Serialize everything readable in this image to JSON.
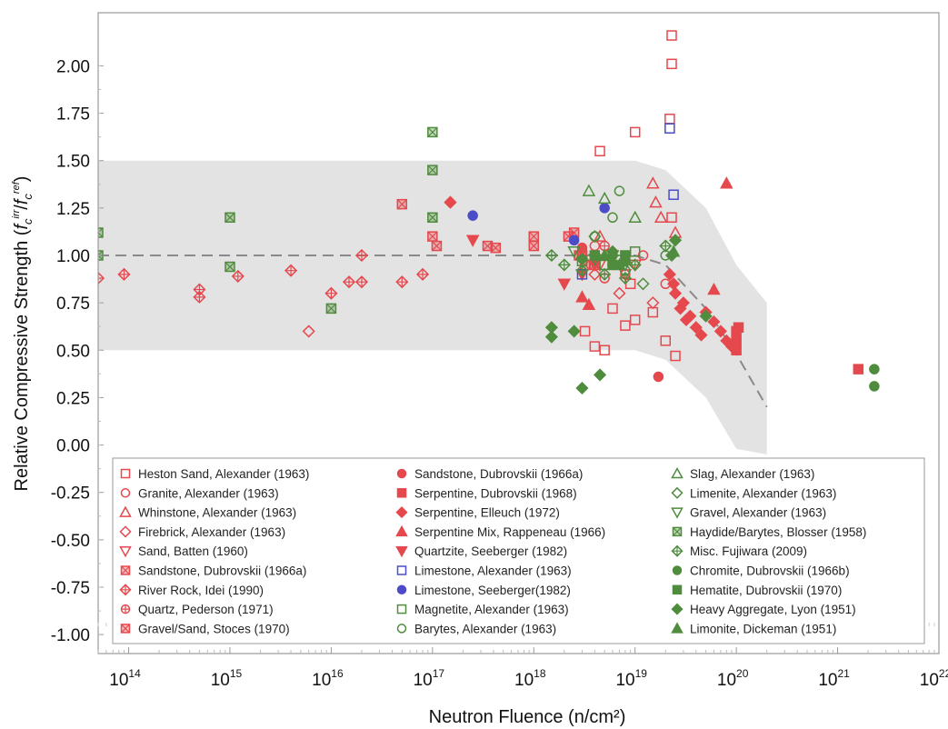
{
  "chart_data": {
    "type": "scatter",
    "xlabel": "Neutron Fluence (n/cm²)",
    "ylabel_prefix": "Relative Compressive Strength (",
    "ylabel_suffix": ")",
    "ylabel_math": {
      "f1": "f",
      "sub1": "c",
      "sup1": "irr",
      "slash": "/",
      "f2": "f",
      "sub2": "c",
      "sup2": "ref"
    },
    "x_scale": "log",
    "xlim": [
      50000000000000.0,
      1e+22
    ],
    "ylim": [
      -1.1,
      2.28
    ],
    "x_ticks": [
      {
        "base": "10",
        "exp": "14",
        "value": 100000000000000.0
      },
      {
        "base": "10",
        "exp": "15",
        "value": 1000000000000000.0
      },
      {
        "base": "10",
        "exp": "16",
        "value": 1e+16
      },
      {
        "base": "10",
        "exp": "17",
        "value": 1e+17
      },
      {
        "base": "10",
        "exp": "18",
        "value": 1e+18
      },
      {
        "base": "10",
        "exp": "19",
        "value": 1e+19
      },
      {
        "base": "10",
        "exp": "20",
        "value": 1e+20
      },
      {
        "base": "10",
        "exp": "21",
        "value": 1e+21
      },
      {
        "base": "10",
        "exp": "22",
        "value": 1e+22
      }
    ],
    "y_ticks": [
      {
        "label": "2.00",
        "value": 2.0
      },
      {
        "label": "1.75",
        "value": 1.75
      },
      {
        "label": "1.50",
        "value": 1.5
      },
      {
        "label": "1.25",
        "value": 1.25
      },
      {
        "label": "1.00",
        "value": 1.0
      },
      {
        "label": "0.75",
        "value": 0.75
      },
      {
        "label": "0.50",
        "value": 0.5
      },
      {
        "label": "0.25",
        "value": 0.25
      },
      {
        "label": "0.00",
        "value": 0.0
      },
      {
        "label": "-0.25",
        "value": -0.25
      },
      {
        "label": "-0.50",
        "value": -0.5
      },
      {
        "label": "-0.75",
        "value": -0.75
      },
      {
        "label": "-1.00",
        "value": -1.0
      }
    ],
    "grid": false,
    "legend_position": "bottom-inside",
    "colors": {
      "red": "#e5484d",
      "blue": "#4c4cc8",
      "green": "#4f8c3d",
      "band": "#e3e3e3",
      "trend": "#8a8a8a"
    },
    "band": {
      "upper": [
        [
          50000000000000.0,
          1.5
        ],
        [
          1e+19,
          1.5
        ],
        [
          2e+19,
          1.45
        ],
        [
          5e+19,
          1.25
        ],
        [
          1e+20,
          0.95
        ],
        [
          2e+20,
          0.75
        ]
      ],
      "lower": [
        [
          50000000000000.0,
          0.5
        ],
        [
          1e+19,
          0.5
        ],
        [
          2e+19,
          0.45
        ],
        [
          5e+19,
          0.25
        ],
        [
          1e+20,
          -0.02
        ],
        [
          2e+20,
          -0.05
        ]
      ]
    },
    "trend": [
      [
        50000000000000.0,
        1.0
      ],
      [
        1e+19,
        1.0
      ],
      [
        2e+19,
        0.95
      ],
      [
        5e+19,
        0.72
      ],
      [
        1e+20,
        0.48
      ],
      [
        2e+20,
        0.2
      ]
    ],
    "series": [
      {
        "name": "Heston Sand, Alexander (1963)",
        "color": "red",
        "marker": "square-open",
        "points": [
          [
            2.3e+19,
            2.16
          ],
          [
            2.3e+19,
            2.01
          ],
          [
            2.2e+19,
            1.72
          ],
          [
            1e+19,
            1.65
          ],
          [
            4.5e+18,
            1.55
          ],
          [
            2.3e+19,
            1.2
          ],
          [
            3e+18,
            1.0
          ],
          [
            3.2e+18,
            0.6
          ],
          [
            4e+18,
            0.52
          ],
          [
            5e+18,
            0.5
          ],
          [
            6e+18,
            0.72
          ],
          [
            8e+18,
            0.63
          ],
          [
            1e+19,
            0.66
          ],
          [
            2e+19,
            0.55
          ],
          [
            2.5e+19,
            0.47
          ],
          [
            1.5e+19,
            0.7
          ],
          [
            9e+18,
            0.85
          ]
        ]
      },
      {
        "name": "Granite, Alexander (1963)",
        "color": "red",
        "marker": "circle-open",
        "points": [
          [
            4e+18,
            1.05
          ],
          [
            6e+18,
            0.95
          ],
          [
            8e+18,
            0.9
          ],
          [
            1.2e+19,
            1.0
          ],
          [
            2e+19,
            0.85
          ],
          [
            5e+18,
            0.88
          ]
        ]
      },
      {
        "name": "Whinstone, Alexander (1963)",
        "color": "red",
        "marker": "triangle-up-open",
        "points": [
          [
            1.5e+19,
            1.38
          ],
          [
            1.6e+19,
            1.28
          ],
          [
            1.8e+19,
            1.2
          ],
          [
            2.5e+19,
            1.12
          ],
          [
            4.5e+18,
            1.1
          ]
        ]
      },
      {
        "name": "Firebrick, Alexander (1963)",
        "color": "red",
        "marker": "diamond-open",
        "points": [
          [
            6000000000000000.0,
            0.6
          ],
          [
            4e+18,
            0.9
          ],
          [
            7e+18,
            0.8
          ],
          [
            1.5e+19,
            0.75
          ]
        ]
      },
      {
        "name": "Sand, Batten (1960)",
        "color": "red",
        "marker": "triangle-down-open",
        "points": [
          [
            4.5e+18,
            0.95
          ],
          [
            6e+18,
            1.0
          ],
          [
            8e+18,
            0.9
          ],
          [
            1e+19,
            0.95
          ]
        ]
      },
      {
        "name": "Sandstone, Dubrovskii (1966a)",
        "color": "red",
        "marker": "square-x",
        "points": [
          [
            2.2e+18,
            1.1
          ],
          [
            3e+18,
            1.0
          ],
          [
            4e+18,
            0.95
          ]
        ]
      },
      {
        "name": "River Rock, Idei (1990)",
        "color": "red",
        "marker": "diamond-plus",
        "points": [
          [
            50000000000000.0,
            0.88
          ],
          [
            90000000000000.0,
            0.9
          ],
          [
            500000000000000.0,
            0.82
          ],
          [
            500000000000000.0,
            0.78
          ],
          [
            1200000000000000.0,
            0.89
          ],
          [
            4000000000000000.0,
            0.92
          ],
          [
            1e+16,
            0.8
          ],
          [
            1.5e+16,
            0.86
          ],
          [
            2e+16,
            1.0
          ],
          [
            2e+16,
            0.86
          ],
          [
            5e+16,
            0.86
          ],
          [
            8e+16,
            0.9
          ],
          [
            1.5e+17,
            1.28
          ]
        ]
      },
      {
        "name": "Quartz, Pederson (1971)",
        "color": "red",
        "marker": "circle-plus",
        "points": [
          [
            3e+18,
            1.02
          ],
          [
            4e+18,
            0.98
          ],
          [
            5e+18,
            1.05
          ]
        ]
      },
      {
        "name": "Gravel/Sand, Stoces (1970)",
        "color": "red",
        "marker": "hex-x",
        "points": [
          [
            5e+16,
            1.27
          ],
          [
            1e+17,
            1.1
          ],
          [
            1.1e+17,
            1.05
          ],
          [
            3.5e+17,
            1.05
          ],
          [
            4.2e+17,
            1.04
          ],
          [
            1e+18,
            1.1
          ],
          [
            1e+18,
            1.05
          ],
          [
            2.5e+18,
            1.12
          ],
          [
            2.8e+18,
            1.0
          ],
          [
            3.2e+18,
            0.95
          ]
        ]
      },
      {
        "name": "Sandstone, Dubrovskii (1966a)",
        "color": "red",
        "marker": "circle-filled",
        "points": [
          [
            1.7e+19,
            0.36
          ],
          [
            3e+18,
            1.04
          ],
          [
            4e+18,
            1.0
          ]
        ]
      },
      {
        "name": "Serpentine, Dubrovskii (1968)",
        "color": "red",
        "marker": "square-filled",
        "points": [
          [
            1.6e+21,
            0.4
          ],
          [
            1e+20,
            0.6
          ],
          [
            1e+20,
            0.55
          ],
          [
            1e+20,
            0.5
          ],
          [
            1.05e+20,
            0.62
          ]
        ]
      },
      {
        "name": "Serpentine, Elleuch (1972)",
        "color": "red",
        "marker": "diamond-filled",
        "points": [
          [
            1.5e+17,
            1.28
          ],
          [
            2.2e+19,
            0.9
          ],
          [
            2.4e+19,
            0.85
          ],
          [
            3e+19,
            0.75
          ],
          [
            3.5e+19,
            0.68
          ],
          [
            4e+19,
            0.62
          ],
          [
            5e+19,
            0.7
          ],
          [
            6e+19,
            0.65
          ],
          [
            7e+19,
            0.6
          ],
          [
            8e+19,
            0.55
          ],
          [
            9e+19,
            0.52
          ],
          [
            2.5e+19,
            0.8
          ],
          [
            2.8e+19,
            0.72
          ],
          [
            3.2e+19,
            0.66
          ],
          [
            4.5e+19,
            0.58
          ]
        ]
      },
      {
        "name": "Serpentine Mix, Rappeneau (1966)",
        "color": "red",
        "marker": "triangle-up-filled",
        "points": [
          [
            8e+19,
            1.38
          ],
          [
            3e+18,
            0.78
          ],
          [
            3.5e+18,
            0.74
          ],
          [
            6e+19,
            0.82
          ]
        ]
      },
      {
        "name": "Quartzite, Seeberger (1982)",
        "color": "red",
        "marker": "triangle-down-filled",
        "points": [
          [
            2.5e+17,
            1.08
          ],
          [
            3e+18,
            0.9
          ],
          [
            4e+18,
            0.95
          ],
          [
            2e+18,
            0.85
          ]
        ]
      },
      {
        "name": "Limestone, Alexander (1963)",
        "color": "blue",
        "marker": "square-open",
        "points": [
          [
            2.2e+19,
            1.67
          ],
          [
            2.4e+19,
            1.32
          ],
          [
            3e+18,
            0.9
          ]
        ]
      },
      {
        "name": "Limestone, Seeberger(1982)",
        "color": "blue",
        "marker": "circle-filled",
        "points": [
          [
            2.5e+17,
            1.21
          ],
          [
            5e+18,
            1.25
          ],
          [
            2.5e+18,
            1.08
          ]
        ]
      },
      {
        "name": "Magnetite, Alexander (1963)",
        "color": "green",
        "marker": "square-open",
        "points": [
          [
            3e+18,
            0.97
          ],
          [
            5e+18,
            0.95
          ],
          [
            1e+19,
            1.02
          ]
        ]
      },
      {
        "name": "Barytes, Alexander (1963)",
        "color": "green",
        "marker": "circle-open",
        "points": [
          [
            7e+18,
            1.34
          ],
          [
            6e+18,
            1.2
          ],
          [
            8e+18,
            0.92
          ],
          [
            2e+19,
            1.0
          ],
          [
            4e+18,
            1.1
          ]
        ]
      },
      {
        "name": "Slag, Alexander (1963)",
        "color": "green",
        "marker": "triangle-up-open",
        "points": [
          [
            3.5e+18,
            1.34
          ],
          [
            5e+18,
            1.3
          ],
          [
            1e+19,
            1.2
          ]
        ]
      },
      {
        "name": "Limenite, Alexander (1963)",
        "color": "green",
        "marker": "diamond-open",
        "points": [
          [
            4e+18,
            1.1
          ],
          [
            6e+18,
            1.0
          ],
          [
            1.2e+19,
            0.85
          ]
        ]
      },
      {
        "name": "Gravel, Alexander (1963)",
        "color": "green",
        "marker": "triangle-down-open",
        "points": [
          [
            2.5e+18,
            1.02
          ],
          [
            4e+18,
            0.98
          ],
          [
            8e+18,
            0.95
          ]
        ]
      },
      {
        "name": "Haydide/Barytes, Blosser (1958)",
        "color": "green",
        "marker": "square-x",
        "points": [
          [
            50000000000000.0,
            1.12
          ],
          [
            50000000000000.0,
            1.0
          ],
          [
            1000000000000000.0,
            1.2
          ],
          [
            1000000000000000.0,
            0.94
          ],
          [
            1e+16,
            0.72
          ],
          [
            1e+17,
            1.65
          ],
          [
            1e+17,
            1.45
          ],
          [
            1e+17,
            1.2
          ]
        ]
      },
      {
        "name": "Misc. Fujiwara (2009)",
        "color": "green",
        "marker": "diamond-plus",
        "points": [
          [
            1.5e+18,
            1.0
          ],
          [
            2e+18,
            0.95
          ],
          [
            3e+18,
            0.92
          ],
          [
            5e+18,
            0.9
          ],
          [
            8e+18,
            0.88
          ],
          [
            1e+19,
            0.95
          ],
          [
            2e+19,
            1.05
          ]
        ]
      },
      {
        "name": "Chromite, Dubrovskii (1966b)",
        "color": "green",
        "marker": "circle-filled",
        "points": [
          [
            2.3e+21,
            0.4
          ],
          [
            2.3e+21,
            0.31
          ],
          [
            6e+18,
            1.0
          ],
          [
            8e+18,
            0.97
          ]
        ]
      },
      {
        "name": "Hematite, Dubrovskii (1970)",
        "color": "green",
        "marker": "square-filled",
        "points": [
          [
            4e+18,
            1.0
          ],
          [
            6e+18,
            0.95
          ],
          [
            8e+18,
            1.0
          ]
        ]
      },
      {
        "name": "Heavy Aggregate, Lyon (1951)",
        "color": "green",
        "marker": "diamond-filled",
        "points": [
          [
            3e+18,
            0.3
          ],
          [
            4.5e+18,
            0.37
          ],
          [
            1.5e+18,
            0.62
          ],
          [
            1.5e+18,
            0.57
          ],
          [
            2.5e+18,
            0.6
          ],
          [
            2.5e+19,
            1.08
          ],
          [
            2.3e+19,
            1.0
          ],
          [
            5e+19,
            0.68
          ],
          [
            3e+18,
            0.98
          ],
          [
            6e+18,
            1.02
          ]
        ]
      },
      {
        "name": "Limonite, Dickeman (1951)",
        "color": "green",
        "marker": "triangle-up-filled",
        "points": [
          [
            5e+18,
            1.0
          ],
          [
            7e+18,
            0.95
          ],
          [
            2.4e+19,
            1.02
          ]
        ]
      }
    ]
  }
}
